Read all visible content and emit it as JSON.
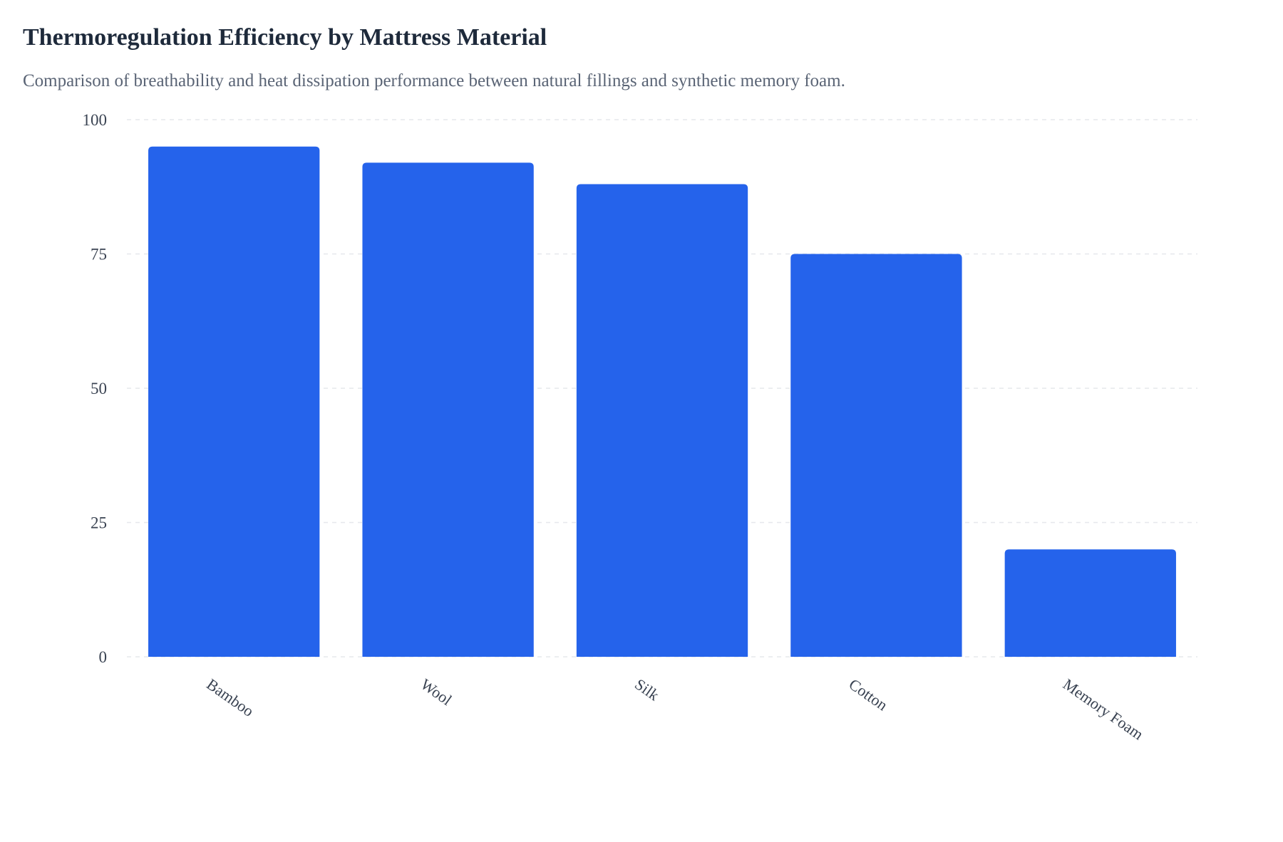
{
  "chart_data": {
    "type": "bar",
    "title": "Thermoregulation Efficiency by Mattress Material",
    "subtitle": "Comparison of breathability and heat dissipation performance between natural fillings and synthetic memory foam.",
    "categories": [
      "Bamboo",
      "Wool",
      "Silk",
      "Cotton",
      "Memory Foam"
    ],
    "values": [
      95,
      92,
      88,
      75,
      20
    ],
    "ylim": [
      0,
      100
    ],
    "yticks": [
      0,
      25,
      50,
      75,
      100
    ],
    "xlabel": "",
    "ylabel": "",
    "grid": true,
    "legend": "none",
    "bar_color": "#2563eb"
  }
}
